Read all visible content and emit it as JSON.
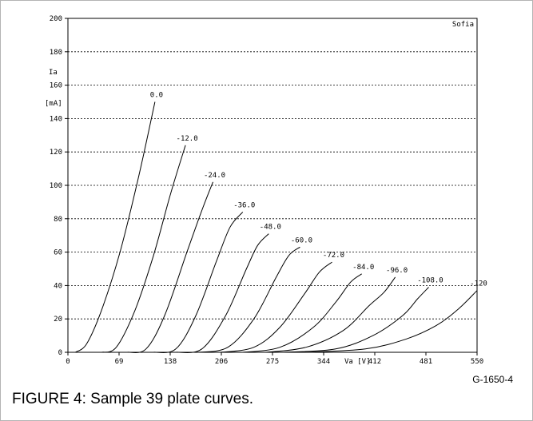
{
  "figure": {
    "id": "G-1650-4",
    "caption": "FIGURE 4: Sample 39 plate curves."
  },
  "chart_data": {
    "type": "line",
    "corner_label": "Sofia",
    "ylabel_line1": "Ia",
    "ylabel_line2": "[mA]",
    "xlabel": "Va [V]",
    "xlim": [
      0,
      550
    ],
    "ylim": [
      0,
      200
    ],
    "x_ticks": [
      "0",
      "69",
      "138",
      "206",
      "275",
      "344",
      "412",
      "481",
      "550"
    ],
    "y_ticks": [
      "0",
      "20",
      "40",
      "60",
      "80",
      "100",
      "120",
      "140",
      "160",
      "180",
      "200"
    ],
    "grid": "horizontal dotted",
    "series": [
      {
        "name": "0.0",
        "points": [
          [
            10,
            0
          ],
          [
            25,
            5
          ],
          [
            45,
            25
          ],
          [
            70,
            60
          ],
          [
            95,
            105
          ],
          [
            117,
            150
          ]
        ]
      },
      {
        "name": "-12.0",
        "points": [
          [
            45,
            0
          ],
          [
            65,
            3
          ],
          [
            90,
            25
          ],
          [
            115,
            58
          ],
          [
            138,
            95
          ],
          [
            158,
            124
          ]
        ]
      },
      {
        "name": "-24.0",
        "points": [
          [
            80,
            0
          ],
          [
            105,
            2
          ],
          [
            130,
            22
          ],
          [
            160,
            60
          ],
          [
            180,
            85
          ],
          [
            195,
            102
          ]
        ]
      },
      {
        "name": "-36.0",
        "points": [
          [
            115,
            0
          ],
          [
            145,
            2
          ],
          [
            172,
            22
          ],
          [
            200,
            55
          ],
          [
            218,
            75
          ],
          [
            235,
            84
          ]
        ]
      },
      {
        "name": "-48.0",
        "points": [
          [
            145,
            0
          ],
          [
            180,
            2
          ],
          [
            212,
            22
          ],
          [
            240,
            50
          ],
          [
            255,
            64
          ],
          [
            270,
            71
          ]
        ]
      },
      {
        "name": "-60.0",
        "points": [
          [
            175,
            0
          ],
          [
            215,
            3
          ],
          [
            250,
            20
          ],
          [
            280,
            45
          ],
          [
            297,
            58
          ],
          [
            312,
            63
          ]
        ]
      },
      {
        "name": "-72.0",
        "points": [
          [
            205,
            0
          ],
          [
            250,
            3
          ],
          [
            285,
            15
          ],
          [
            318,
            35
          ],
          [
            338,
            48
          ],
          [
            355,
            54
          ]
        ]
      },
      {
        "name": "-84.0",
        "points": [
          [
            235,
            0
          ],
          [
            285,
            3
          ],
          [
            330,
            15
          ],
          [
            360,
            30
          ],
          [
            380,
            42
          ],
          [
            395,
            47
          ]
        ]
      },
      {
        "name": "-96.0",
        "points": [
          [
            265,
            0
          ],
          [
            320,
            3
          ],
          [
            370,
            13
          ],
          [
            405,
            28
          ],
          [
            425,
            36
          ],
          [
            440,
            45
          ]
        ]
      },
      {
        "name": "-108.0",
        "points": [
          [
            290,
            0
          ],
          [
            360,
            2
          ],
          [
            410,
            10
          ],
          [
            450,
            22
          ],
          [
            470,
            32
          ],
          [
            485,
            39
          ]
        ]
      },
      {
        "name": "-120",
        "points": [
          [
            320,
            0
          ],
          [
            400,
            2
          ],
          [
            455,
            8
          ],
          [
            495,
            16
          ],
          [
            525,
            26
          ],
          [
            550,
            37
          ]
        ]
      }
    ]
  }
}
